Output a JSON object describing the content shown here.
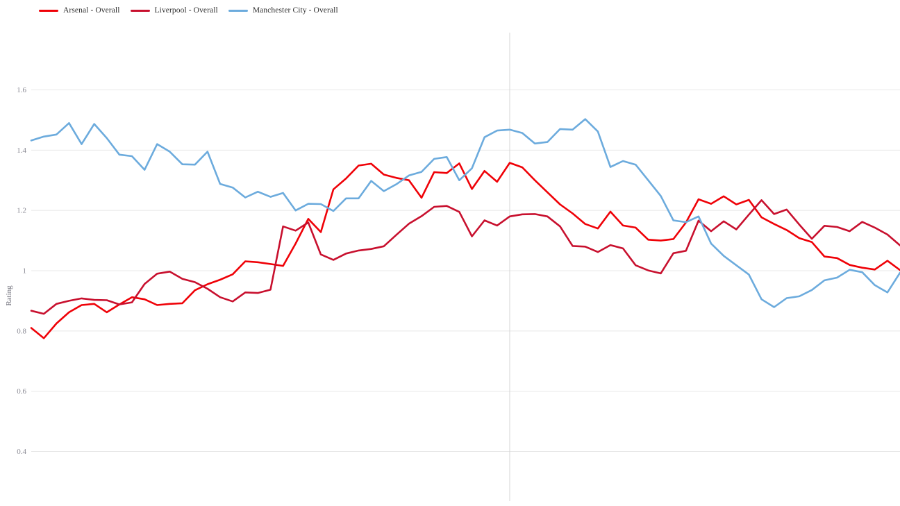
{
  "chart_data": {
    "type": "line",
    "title": "",
    "xlabel": "",
    "ylabel": "Rating",
    "x": "unlabeled match index 0-69 (x tick labels not visible in screenshot)",
    "yticks": [
      0.4,
      0.6,
      0.8,
      1,
      1.2,
      1.4,
      1.6
    ],
    "ylim": [
      0.23,
      1.79
    ],
    "grid": true,
    "vertical_gridline_index": 38,
    "legend_position": "top-left",
    "series": [
      {
        "name": "Arsenal - Overall",
        "color": "#EF0107",
        "values": [
          0.81,
          0.776,
          0.825,
          0.862,
          0.886,
          0.89,
          0.862,
          0.888,
          0.912,
          0.905,
          0.886,
          0.89,
          0.892,
          0.935,
          0.955,
          0.97,
          0.988,
          1.031,
          1.028,
          1.022,
          1.016,
          1.09,
          1.172,
          1.128,
          1.27,
          1.306,
          1.349,
          1.355,
          1.319,
          1.308,
          1.3,
          1.242,
          1.327,
          1.324,
          1.356,
          1.271,
          1.331,
          1.295,
          1.358,
          1.343,
          1.3,
          1.26,
          1.22,
          1.19,
          1.155,
          1.14,
          1.196,
          1.15,
          1.143,
          1.103,
          1.1,
          1.105,
          1.16,
          1.237,
          1.222,
          1.247,
          1.22,
          1.235,
          1.177,
          1.155,
          1.135,
          1.108,
          1.095,
          1.047,
          1.042,
          1.019,
          1.01,
          1.004,
          1.033,
          1.002
        ]
      },
      {
        "name": "Liverpool - Overall",
        "color": "#C8102E",
        "values": [
          0.867,
          0.857,
          0.89,
          0.9,
          0.908,
          0.903,
          0.902,
          0.888,
          0.895,
          0.956,
          0.99,
          0.997,
          0.973,
          0.962,
          0.94,
          0.912,
          0.898,
          0.928,
          0.926,
          0.937,
          1.147,
          1.133,
          1.16,
          1.054,
          1.036,
          1.057,
          1.067,
          1.072,
          1.081,
          1.119,
          1.156,
          1.181,
          1.212,
          1.215,
          1.195,
          1.114,
          1.167,
          1.15,
          1.18,
          1.187,
          1.188,
          1.18,
          1.147,
          1.082,
          1.08,
          1.062,
          1.085,
          1.074,
          1.018,
          1.001,
          0.991,
          1.058,
          1.066,
          1.166,
          1.131,
          1.164,
          1.137,
          1.186,
          1.234,
          1.188,
          1.203,
          1.153,
          1.106,
          1.149,
          1.145,
          1.131,
          1.162,
          1.143,
          1.12,
          1.084
        ]
      },
      {
        "name": "Manchester City - Overall",
        "color": "#6CABDD",
        "values": [
          1.432,
          1.445,
          1.452,
          1.49,
          1.42,
          1.487,
          1.44,
          1.385,
          1.38,
          1.335,
          1.42,
          1.395,
          1.353,
          1.352,
          1.395,
          1.288,
          1.276,
          1.243,
          1.262,
          1.245,
          1.258,
          1.2,
          1.222,
          1.221,
          1.198,
          1.24,
          1.24,
          1.298,
          1.264,
          1.287,
          1.316,
          1.328,
          1.371,
          1.377,
          1.3,
          1.34,
          1.443,
          1.465,
          1.468,
          1.457,
          1.422,
          1.427,
          1.47,
          1.468,
          1.503,
          1.462,
          1.344,
          1.364,
          1.352,
          1.3,
          1.248,
          1.167,
          1.161,
          1.18,
          1.09,
          1.049,
          1.018,
          0.987,
          0.905,
          0.879,
          0.909,
          0.915,
          0.936,
          0.968,
          0.977,
          1.003,
          0.995,
          0.952,
          0.928,
          0.993
        ]
      }
    ],
    "colors": {
      "horizontal_gridline": "#e8e8e8",
      "vertical_gridline": "#d6d6d6",
      "tick_label": "#8a8a94",
      "axis_title": "#6d6d78",
      "legend_text": "#2e2e2e",
      "background": "#ffffff"
    }
  }
}
